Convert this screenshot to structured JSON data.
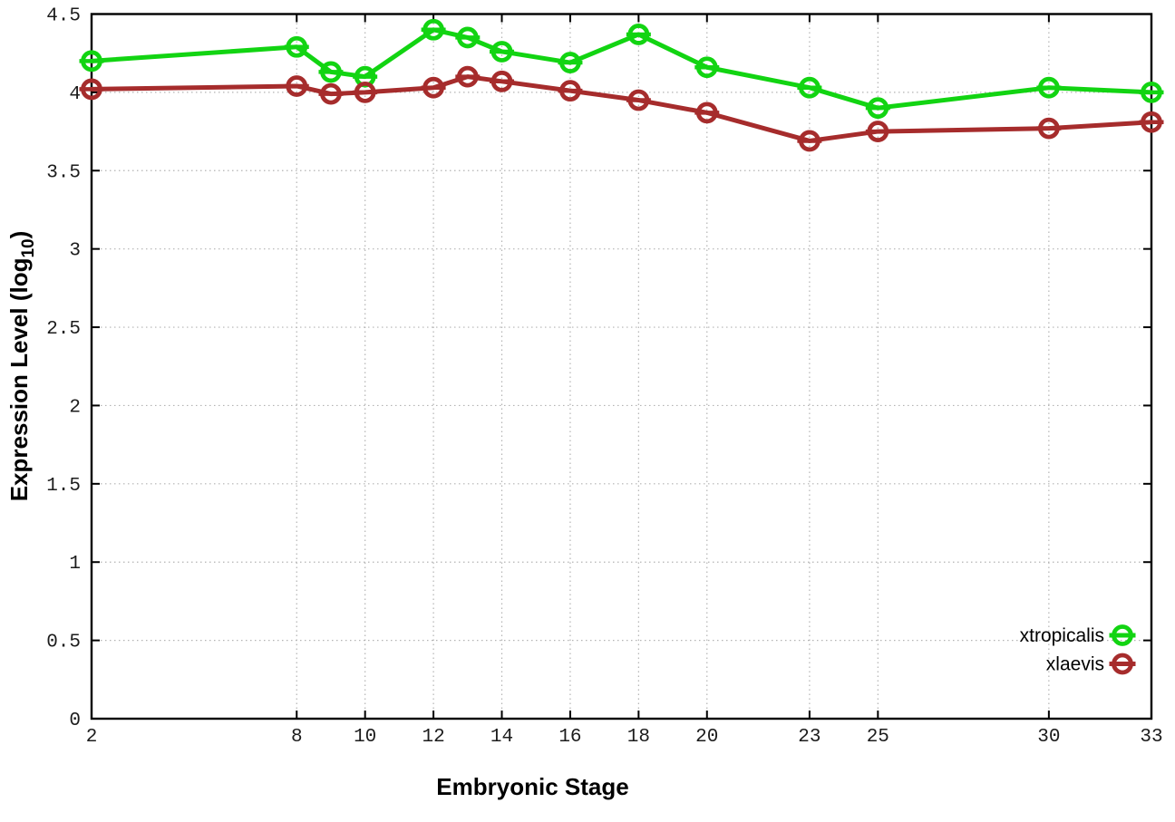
{
  "chart_data": {
    "type": "line",
    "title": "",
    "xlabel": "Embryonic Stage",
    "ylabel": "Expression Level (log10)",
    "ylabel_parts": {
      "pre": "Expression Level (log",
      "sub": "10",
      "post": ")"
    },
    "xlim": [
      2,
      33
    ],
    "ylim": [
      0,
      4.5
    ],
    "grid": true,
    "grid_style": "dotted",
    "legend_position": "bottom-right-inside",
    "marker": "open-circle-with-errorbar-tick",
    "x": [
      2,
      8,
      9,
      10,
      12,
      13,
      14,
      16,
      18,
      20,
      23,
      25,
      30,
      33
    ],
    "x_ticks": [
      2,
      8,
      10,
      12,
      14,
      16,
      18,
      20,
      23,
      25,
      30,
      33
    ],
    "x_tick_labels": [
      "2",
      "8",
      "10",
      "12",
      "14",
      "16",
      "18",
      "20",
      "23",
      "25",
      "30",
      "33"
    ],
    "y_ticks": [
      0,
      0.5,
      1,
      1.5,
      2,
      2.5,
      3,
      3.5,
      4,
      4.5
    ],
    "y_tick_labels": [
      "0",
      "0.5",
      "1",
      "1.5",
      "2",
      "2.5",
      "3",
      "3.5",
      "4",
      "4.5"
    ],
    "series": [
      {
        "name": "xtropicalis",
        "color": "#12d412",
        "values": [
          4.2,
          4.29,
          4.13,
          4.1,
          4.4,
          4.35,
          4.26,
          4.19,
          4.37,
          4.16,
          4.03,
          3.9,
          4.03,
          4.0
        ]
      },
      {
        "name": "xlaevis",
        "color": "#a62c2c",
        "values": [
          4.02,
          4.04,
          3.99,
          4.0,
          4.03,
          4.1,
          4.07,
          4.01,
          3.95,
          3.87,
          3.69,
          3.75,
          3.77,
          3.81
        ]
      }
    ]
  },
  "style": {
    "axis_color": "#000000",
    "grid_color": "#b3b3b3",
    "tick_text_color": "#1c1c1c",
    "background": "#ffffff"
  }
}
